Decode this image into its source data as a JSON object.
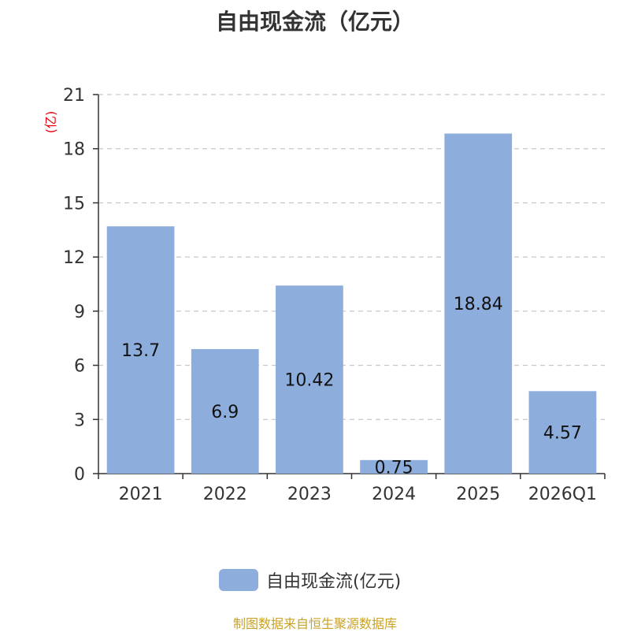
{
  "title": "自由现金流（亿元）",
  "footer": "制图数据来自恒生聚源数据库",
  "colors": {
    "bar": "#8DAEDC",
    "axis": "#333333",
    "grid": "#BBBBBB",
    "unit": "#E8000B",
    "footer": "#C9A227"
  },
  "chart_data": {
    "type": "bar",
    "title": "自由现金流（亿元）",
    "ylabel": "(亿)",
    "ylim": [
      0,
      21
    ],
    "yticks": [
      0,
      3,
      6,
      9,
      12,
      15,
      18,
      21
    ],
    "grid": true,
    "legend_position": "bottom-center",
    "categories": [
      "2021",
      "2022",
      "2023",
      "2024",
      "2025",
      "2026Q1"
    ],
    "series": [
      {
        "name": "自由现金流(亿元)",
        "values": [
          13.7,
          6.9,
          10.42,
          0.75,
          18.84,
          4.57
        ],
        "labels": [
          "13.7",
          "6.9",
          "10.42",
          "0.75",
          "18.84",
          "4.57"
        ]
      }
    ]
  }
}
